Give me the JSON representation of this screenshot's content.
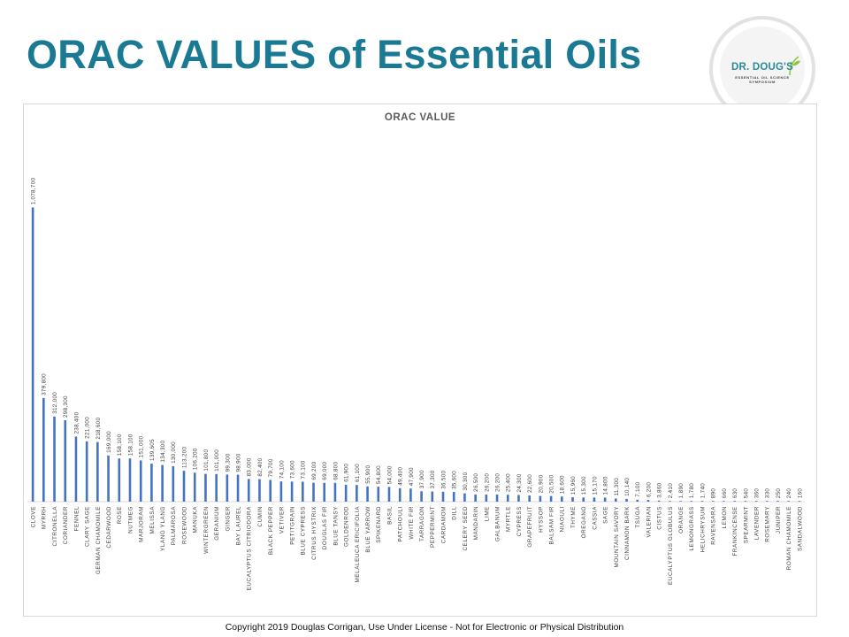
{
  "title": "ORAC VALUES of Essential Oils",
  "logo": {
    "name": "DR. DOUG'S",
    "tagline": "ESSENTIAL OIL SCIENCE SYMPOSIUM"
  },
  "footer": {
    "copyright": "Copyright 2019 Douglas Corrigan, Use Under License - Not for Electronic or Physical Distribution"
  },
  "colors": {
    "title": "#1a7a94",
    "bar": "#4472c4",
    "logo_text": "#2a8a9e",
    "logo_leaf": "#8dc63f"
  },
  "chart_data": {
    "type": "bar",
    "title": "ORAC VALUE",
    "xlabel": "",
    "ylabel": "",
    "ylim": [
      0,
      1200000
    ],
    "grid": false,
    "legend": "none",
    "categories": [
      "CLOVE",
      "MYRRH",
      "CITRONELLA",
      "CORIANDER",
      "FENNEL",
      "CLARY SAGE",
      "GERMAN CHAMOMILE",
      "CEDARWOOD",
      "ROSE",
      "NUTMEG",
      "MARJORAM",
      "MELISSA",
      "YLANG YLANG",
      "PALMAROSA",
      "ROSEWOOD",
      "MANUKA",
      "WINTERGREEN",
      "GERANIUM",
      "GINGER",
      "BAY LAUREL",
      "EUCALYPTUS CITRIODORA",
      "CUMIN",
      "BLACK PEPPER",
      "VETIVER",
      "PETITGRAIN",
      "BLUE CYPRESS",
      "CITRUS HYSTRIX",
      "DOUGLAS FIR",
      "BLUE TANSY",
      "GOLDENROD",
      "MELALEUCA ERICIFOLIA",
      "BLUE YARROW",
      "SPIKENARD",
      "BASIL",
      "PATCHOULI",
      "WHITE FIR",
      "TARRAGON",
      "PEPPERMINT",
      "CARDAMOM",
      "DILL",
      "CELERY SEED",
      "MANDARIN",
      "LIME",
      "GALBANUM",
      "MYRTLE",
      "CYPRESS",
      "GRAPEFRUIT",
      "HYSSOP",
      "BALSAM FIR",
      "NIAOULI",
      "THYME",
      "OREGANO",
      "CASSIA",
      "SAGE",
      "MOUNTAIN SAVORY",
      "CINNAMON BARK",
      "TSUGA",
      "VALERIAN",
      "CISTUS",
      "EUCALYPTUS GLOBULUS",
      "ORANGE",
      "LEMONGRASS",
      "HELICHRYSUM",
      "RAVENSARA",
      "LEMON",
      "FRANKINCENSE",
      "SPEARMINT",
      "LAVENDER",
      "ROSEMARY",
      "JUNIPER",
      "ROMAN CHAMOMILE",
      "SANDALWOOD"
    ],
    "values": [
      1078700,
      379800,
      312000,
      298300,
      238400,
      221000,
      218600,
      169000,
      158100,
      158100,
      151000,
      139605,
      134300,
      130000,
      113200,
      106200,
      101800,
      101000,
      99300,
      98900,
      83000,
      82400,
      79700,
      74100,
      73600,
      73100,
      69200,
      69000,
      68800,
      61900,
      61100,
      55900,
      54800,
      54000,
      49400,
      47900,
      37900,
      37300,
      36500,
      35600,
      30300,
      26500,
      26200,
      26200,
      25400,
      24300,
      22600,
      20900,
      20500,
      18600,
      15960,
      15300,
      15170,
      14800,
      11300,
      10140,
      7100,
      6200,
      3860,
      2410,
      1890,
      1780,
      1740,
      890,
      660,
      630,
      540,
      360,
      330,
      250,
      240,
      160
    ],
    "value_labels": [
      "1,078,700",
      "379,800",
      "312,000",
      "298,300",
      "238,400",
      "221,000",
      "218,600",
      "169,000",
      "158,100",
      "158,100",
      "151,000",
      "139,605",
      "134,300",
      "130,000",
      "113,200",
      "106,200",
      "101,800",
      "101,000",
      "99,300",
      "98,900",
      "83,000",
      "82,400",
      "79,700",
      "74,100",
      "73,600",
      "73,100",
      "69,200",
      "69,000",
      "68,800",
      "61,900",
      "61,100",
      "55,900",
      "54,800",
      "54,000",
      "49,400",
      "47,900",
      "37,900",
      "37,300",
      "36,500",
      "35,600",
      "30,300",
      "26,500",
      "26,200",
      "26,200",
      "25,400",
      "24,300",
      "22,600",
      "20,900",
      "20,500",
      "18,600",
      "15,960",
      "15,300",
      "15,170",
      "14,800",
      "11,300",
      "10,140",
      "7,100",
      "6,200",
      "3,860",
      "2,410",
      "1,890",
      "1,780",
      "1,740",
      "890",
      "660",
      "630",
      "540",
      "360",
      "330",
      "250",
      "240",
      "160"
    ]
  }
}
